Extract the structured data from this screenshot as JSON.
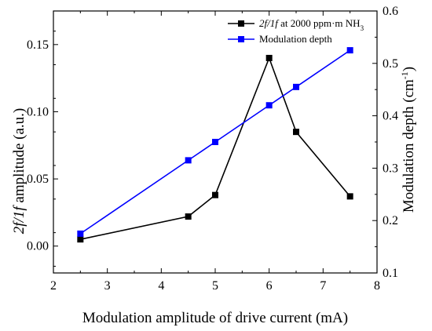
{
  "chart_data": {
    "type": "line",
    "title": "",
    "xlabel": "Modulation amplitude of drive current (mA)",
    "ylabel": "2f/1f amplitude (a.u.)",
    "ylabel_parts": {
      "italic": "2f/1f",
      "rest": " amplitude (a.u.)"
    },
    "y2label": "Modulation depth (cm-1)",
    "y2label_parts": {
      "base": "Modulation depth (cm",
      "sup": "-1",
      "close": ")"
    },
    "xlim": [
      2,
      8
    ],
    "ylim": [
      -0.02,
      0.175
    ],
    "y2lim": [
      0.1,
      0.6
    ],
    "xticks": [
      "2",
      "3",
      "4",
      "5",
      "6",
      "7",
      "8"
    ],
    "yticks": [
      "0.00",
      "0.05",
      "0.10",
      "0.15"
    ],
    "y2ticks": [
      "0.1",
      "0.2",
      "0.3",
      "0.4",
      "0.5",
      "0.6"
    ],
    "grid": false,
    "legend_position": "top-right",
    "series": [
      {
        "name": "2f/1f at 2000 ppm·m NH3",
        "legend_parts": {
          "italic": "2f/1f",
          "rest": " at 2000 ppm·m NH",
          "sub": "3"
        },
        "axis": "left",
        "color": "#000000",
        "marker": "square",
        "x": [
          2.5,
          4.5,
          5.0,
          6.0,
          6.5,
          7.5
        ],
        "y": [
          0.005,
          0.022,
          0.038,
          0.14,
          0.085,
          0.037
        ]
      },
      {
        "name": "Modulation depth",
        "axis": "right",
        "color": "#0000ff",
        "marker": "square",
        "x": [
          2.5,
          4.5,
          5.0,
          6.0,
          6.5,
          7.5
        ],
        "y": [
          0.175,
          0.315,
          0.35,
          0.42,
          0.455,
          0.525
        ]
      }
    ]
  }
}
